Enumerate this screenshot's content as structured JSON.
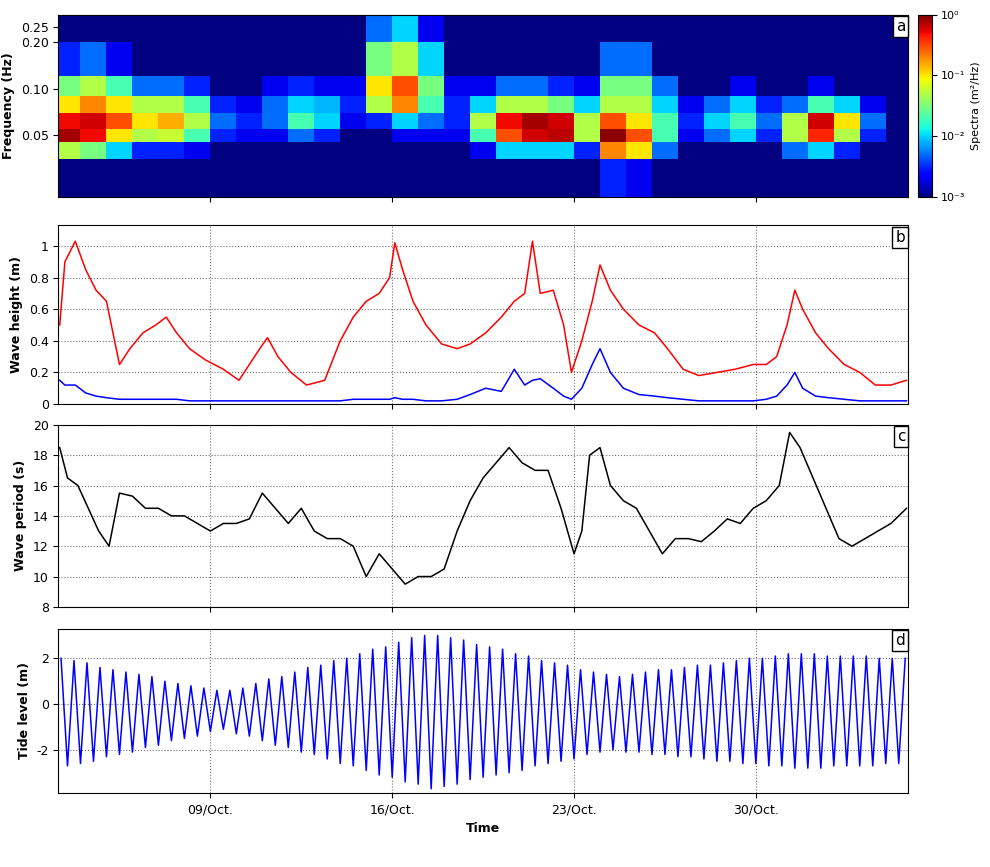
{
  "chart_data": [
    {
      "type": "heatmap",
      "panel": "a",
      "ylabel": "Frequency (Hz)",
      "log": "y",
      "tick_labels": "y",
      "xlim": [
        3.15,
        35.85
      ],
      "xticks": [
        {
          "value": 9,
          "label": "09/Oct."
        },
        {
          "value": 16,
          "label": "16/Oct."
        },
        {
          "value": 23,
          "label": "23/Oct."
        },
        {
          "value": 30,
          "label": "30/Oct."
        }
      ],
      "ylim": [
        0.02,
        0.3
      ],
      "yticks": [
        0.05,
        {
          "value": 0.1,
          "label": "0.10"
        },
        {
          "value": 0.2,
          "label": "0.20"
        },
        0.25
      ],
      "x_bins": [
        3,
        4,
        5,
        6,
        7,
        8,
        9,
        10,
        11,
        12,
        13,
        14,
        15,
        16,
        17,
        18,
        19,
        20,
        21,
        22,
        23,
        24,
        25,
        26,
        27,
        28,
        29,
        30,
        31,
        32,
        33,
        34,
        35,
        36
      ],
      "y_bins": [
        0.02,
        0.035,
        0.045,
        0.055,
        0.07,
        0.09,
        0.12,
        0.2,
        0.3
      ],
      "cells": [
        [
          0.001,
          0.001,
          0.001,
          0.001,
          0.001,
          0.001,
          0.001,
          0.001,
          0.001,
          0.001,
          0.001,
          0.001,
          0.001,
          0.001,
          0.001,
          0.001,
          0.001,
          0.001,
          0.001,
          0.001,
          0.001,
          0.003,
          0.002,
          0.001,
          0.001,
          0.001,
          0.001,
          0.001,
          0.001,
          0.001,
          0.001,
          0.001,
          0.001
        ],
        [
          0.05,
          0.03,
          0.01,
          0.003,
          0.003,
          0.002,
          0.001,
          0.001,
          0.001,
          0.001,
          0.001,
          0.001,
          0.001,
          0.001,
          0.001,
          0.001,
          0.002,
          0.01,
          0.01,
          0.01,
          0.003,
          0.2,
          0.1,
          0.005,
          0.001,
          0.001,
          0.001,
          0.001,
          0.005,
          0.01,
          0.003,
          0.001,
          0.001
        ],
        [
          0.8,
          0.5,
          0.1,
          0.05,
          0.06,
          0.02,
          0.003,
          0.002,
          0.002,
          0.005,
          0.003,
          0.001,
          0.001,
          0.002,
          0.002,
          0.002,
          0.02,
          0.3,
          0.6,
          0.7,
          0.05,
          0.9,
          0.3,
          0.02,
          0.002,
          0.005,
          0.01,
          0.003,
          0.05,
          0.4,
          0.05,
          0.003,
          0.001
        ],
        [
          0.5,
          0.6,
          0.3,
          0.1,
          0.15,
          0.05,
          0.005,
          0.003,
          0.005,
          0.02,
          0.01,
          0.002,
          0.003,
          0.01,
          0.005,
          0.003,
          0.05,
          0.5,
          0.8,
          0.6,
          0.05,
          0.3,
          0.1,
          0.02,
          0.003,
          0.01,
          0.02,
          0.005,
          0.05,
          0.6,
          0.1,
          0.005,
          0.001
        ],
        [
          0.1,
          0.2,
          0.1,
          0.05,
          0.05,
          0.02,
          0.003,
          0.002,
          0.005,
          0.01,
          0.008,
          0.003,
          0.05,
          0.2,
          0.02,
          0.003,
          0.01,
          0.05,
          0.05,
          0.03,
          0.01,
          0.05,
          0.05,
          0.01,
          0.002,
          0.005,
          0.01,
          0.003,
          0.005,
          0.02,
          0.01,
          0.002,
          0.001
        ],
        [
          0.03,
          0.05,
          0.02,
          0.005,
          0.005,
          0.003,
          0.001,
          0.001,
          0.002,
          0.003,
          0.002,
          0.002,
          0.1,
          0.3,
          0.03,
          0.002,
          0.002,
          0.005,
          0.005,
          0.003,
          0.002,
          0.03,
          0.03,
          0.005,
          0.001,
          0.001,
          0.002,
          0.001,
          0.001,
          0.002,
          0.001,
          0.001,
          0.001
        ],
        [
          0.003,
          0.005,
          0.002,
          0.001,
          0.001,
          0.001,
          0.001,
          0.001,
          0.001,
          0.001,
          0.001,
          0.001,
          0.03,
          0.05,
          0.01,
          0.001,
          0.001,
          0.001,
          0.001,
          0.001,
          0.001,
          0.005,
          0.005,
          0.001,
          0.001,
          0.001,
          0.001,
          0.001,
          0.001,
          0.001,
          0.001,
          0.001,
          0.001
        ],
        [
          0.001,
          0.001,
          0.001,
          0.001,
          0.001,
          0.001,
          0.001,
          0.001,
          0.001,
          0.001,
          0.001,
          0.001,
          0.005,
          0.01,
          0.002,
          0.001,
          0.001,
          0.001,
          0.001,
          0.001,
          0.001,
          0.001,
          0.001,
          0.001,
          0.001,
          0.001,
          0.001,
          0.001,
          0.001,
          0.001,
          0.001,
          0.001,
          0.001
        ]
      ],
      "colorbar_label": "Spectra (m²/Hz)",
      "colorbar_range": [
        0.001,
        1
      ],
      "colorbar_ticks": [
        {
          "value": 0.001,
          "label": "10⁻³"
        },
        {
          "value": 0.01,
          "label": "10⁻²"
        },
        {
          "value": 0.1,
          "label": "10⁻¹"
        },
        {
          "value": 1,
          "label": "10⁰"
        }
      ]
    },
    {
      "type": "line",
      "panel": "b",
      "ylabel": "Wave height (m)",
      "grid": true,
      "tick_labels": "y",
      "xlim": [
        3.15,
        35.85
      ],
      "xticks": [
        {
          "value": 9,
          "label": "09/Oct."
        },
        {
          "value": 16,
          "label": "16/Oct."
        },
        {
          "value": 23,
          "label": "23/Oct."
        },
        {
          "value": 30,
          "label": "30/Oct."
        }
      ],
      "ylim": [
        0,
        1.13
      ],
      "yticks": [
        0,
        0.2,
        0.4,
        0.6,
        0.8,
        1
      ],
      "x": [
        3.2,
        3.4,
        3.8,
        4.2,
        4.6,
        5.0,
        5.5,
        5.9,
        6.4,
        6.9,
        7.3,
        7.7,
        8.2,
        8.8,
        9.5,
        10.1,
        10.5,
        10.9,
        11.2,
        11.6,
        12.1,
        12.7,
        13.4,
        14.0,
        14.5,
        15.0,
        15.5,
        15.9,
        16.1,
        16.4,
        16.8,
        17.3,
        17.9,
        18.5,
        19.0,
        19.6,
        20.2,
        20.7,
        21.1,
        21.4,
        21.7,
        22.2,
        22.6,
        22.9,
        23.3,
        23.7,
        24.0,
        24.4,
        24.9,
        25.5,
        26.1,
        26.6,
        27.2,
        27.8,
        28.5,
        29.2,
        29.9,
        30.4,
        30.8,
        31.2,
        31.5,
        31.8,
        32.3,
        32.8,
        33.4,
        34.0,
        34.6,
        35.2,
        35.8
      ],
      "series": [
        {
          "color": "#ff0000",
          "values": [
            0.5,
            0.9,
            1.03,
            0.85,
            0.72,
            0.65,
            0.25,
            0.35,
            0.45,
            0.5,
            0.55,
            0.45,
            0.35,
            0.28,
            0.22,
            0.15,
            0.25,
            0.35,
            0.42,
            0.3,
            0.2,
            0.12,
            0.15,
            0.4,
            0.55,
            0.65,
            0.7,
            0.8,
            1.02,
            0.85,
            0.65,
            0.5,
            0.38,
            0.35,
            0.38,
            0.45,
            0.55,
            0.65,
            0.7,
            1.03,
            0.7,
            0.72,
            0.5,
            0.2,
            0.4,
            0.65,
            0.88,
            0.72,
            0.6,
            0.5,
            0.45,
            0.35,
            0.22,
            0.18,
            0.2,
            0.22,
            0.25,
            0.25,
            0.3,
            0.5,
            0.72,
            0.6,
            0.45,
            0.35,
            0.25,
            0.2,
            0.12,
            0.12,
            0.15
          ]
        },
        {
          "color": "#0000ff",
          "values": [
            0.15,
            0.12,
            0.12,
            0.07,
            0.05,
            0.04,
            0.03,
            0.03,
            0.03,
            0.03,
            0.03,
            0.03,
            0.02,
            0.02,
            0.02,
            0.02,
            0.02,
            0.02,
            0.02,
            0.02,
            0.02,
            0.02,
            0.02,
            0.02,
            0.03,
            0.03,
            0.03,
            0.03,
            0.04,
            0.03,
            0.03,
            0.02,
            0.02,
            0.03,
            0.06,
            0.1,
            0.08,
            0.22,
            0.12,
            0.15,
            0.16,
            0.1,
            0.05,
            0.03,
            0.1,
            0.25,
            0.35,
            0.2,
            0.1,
            0.06,
            0.05,
            0.04,
            0.03,
            0.02,
            0.02,
            0.02,
            0.02,
            0.03,
            0.05,
            0.12,
            0.2,
            0.1,
            0.05,
            0.04,
            0.03,
            0.02,
            0.02,
            0.02,
            0.02
          ]
        }
      ]
    },
    {
      "type": "line",
      "panel": "c",
      "ylabel": "Wave period (s)",
      "grid": true,
      "tick_labels": "y",
      "xlim": [
        3.15,
        35.85
      ],
      "xticks": [
        {
          "value": 9,
          "label": "09/Oct."
        },
        {
          "value": 16,
          "label": "16/Oct."
        },
        {
          "value": 23,
          "label": "23/Oct."
        },
        {
          "value": 30,
          "label": "30/Oct."
        }
      ],
      "ylim": [
        8,
        20
      ],
      "yticks": [
        8,
        10,
        12,
        14,
        16,
        18,
        20
      ],
      "x": [
        3.2,
        3.5,
        3.9,
        4.3,
        4.7,
        5.1,
        5.5,
        6.0,
        6.5,
        7.0,
        7.5,
        8.0,
        8.5,
        9.0,
        9.5,
        10.0,
        10.5,
        11.0,
        11.5,
        12.0,
        12.5,
        13.0,
        13.5,
        14.0,
        14.5,
        15.0,
        15.5,
        16.0,
        16.5,
        17.0,
        17.5,
        18.0,
        18.5,
        19.0,
        19.5,
        20.0,
        20.5,
        21.0,
        21.5,
        22.0,
        22.5,
        23.0,
        23.3,
        23.6,
        24.0,
        24.4,
        24.9,
        25.4,
        25.9,
        26.4,
        26.9,
        27.4,
        27.9,
        28.4,
        28.9,
        29.4,
        29.9,
        30.4,
        30.9,
        31.3,
        31.7,
        32.2,
        32.7,
        33.2,
        33.7,
        34.2,
        34.7,
        35.2,
        35.8
      ],
      "series": [
        {
          "color": "#000000",
          "values": [
            18.5,
            16.5,
            16,
            14.5,
            13,
            12,
            15.5,
            15.3,
            14.5,
            14.5,
            14,
            14,
            13.5,
            13,
            13.5,
            13.5,
            13.8,
            15.5,
            14.5,
            13.5,
            14.5,
            13,
            12.5,
            12.5,
            12,
            10,
            11.5,
            10.5,
            9.5,
            10,
            10,
            10.5,
            13,
            15,
            16.5,
            17.5,
            18.5,
            17.5,
            17,
            17,
            14.5,
            11.5,
            13,
            18,
            18.5,
            16,
            15,
            14.5,
            13,
            11.5,
            12.5,
            12.5,
            12.3,
            13,
            13.8,
            13.5,
            14.5,
            15,
            16,
            19.5,
            18.5,
            16.5,
            14.5,
            12.5,
            12,
            12.5,
            13,
            13.5,
            14.5
          ]
        }
      ]
    },
    {
      "type": "line",
      "panel": "d",
      "ylabel": "Tide level (m)",
      "xlabel": "Time",
      "grid": true,
      "xlim": [
        3.15,
        35.85
      ],
      "xticks": [
        {
          "value": 9,
          "label": "09/Oct."
        },
        {
          "value": 16,
          "label": "16/Oct."
        },
        {
          "value": 23,
          "label": "23/Oct."
        },
        {
          "value": 30,
          "label": "30/Oct."
        }
      ],
      "ylim": [
        -3.9,
        3.3
      ],
      "yticks": [
        -2,
        0,
        2
      ],
      "x": [
        3.25,
        3.5,
        3.75,
        4,
        4.25,
        4.5,
        4.75,
        5,
        5.25,
        5.5,
        5.75,
        6,
        6.25,
        6.5,
        6.75,
        7,
        7.25,
        7.5,
        7.75,
        8,
        8.25,
        8.5,
        8.75,
        9,
        9.25,
        9.5,
        9.75,
        10,
        10.25,
        10.5,
        10.75,
        11,
        11.25,
        11.5,
        11.75,
        12,
        12.25,
        12.5,
        12.75,
        13,
        13.25,
        13.5,
        13.75,
        14,
        14.25,
        14.5,
        14.75,
        15,
        15.25,
        15.5,
        15.75,
        16,
        16.25,
        16.5,
        16.75,
        17,
        17.25,
        17.5,
        17.75,
        18,
        18.25,
        18.5,
        18.75,
        19,
        19.25,
        19.5,
        19.75,
        20,
        20.25,
        20.5,
        20.75,
        21,
        21.25,
        21.5,
        21.75,
        22,
        22.25,
        22.5,
        22.75,
        23,
        23.25,
        23.5,
        23.75,
        24,
        24.25,
        24.5,
        24.75,
        25,
        25.25,
        25.5,
        25.75,
        26,
        26.25,
        26.5,
        26.75,
        27,
        27.25,
        27.5,
        27.75,
        28,
        28.25,
        28.5,
        28.75,
        29,
        29.25,
        29.5,
        29.75,
        30,
        30.25,
        30.5,
        30.75,
        31,
        31.25,
        31.5,
        31.75,
        32,
        32.25,
        32.5,
        32.75,
        33,
        33.25,
        33.5,
        33.75,
        34,
        34.25,
        34.5,
        34.75,
        35,
        35.25,
        35.5,
        35.75
      ],
      "series": [
        {
          "color": "#0000ff",
          "values": [
            2.0,
            -2.7,
            1.9,
            -2.6,
            1.8,
            -2.5,
            1.6,
            -2.3,
            1.5,
            -2.2,
            1.4,
            -2.1,
            1.3,
            -1.9,
            1.2,
            -1.8,
            1.0,
            -1.6,
            0.9,
            -1.5,
            0.8,
            -1.4,
            0.7,
            -1.2,
            0.6,
            -1.1,
            0.6,
            -1.3,
            0.7,
            -1.4,
            0.9,
            -1.6,
            1.1,
            -1.8,
            1.2,
            -1.9,
            1.4,
            -2.1,
            1.6,
            -2.2,
            1.7,
            -2.4,
            1.9,
            -2.6,
            2.0,
            -2.7,
            2.2,
            -2.9,
            2.4,
            -3.1,
            2.5,
            -3.2,
            2.7,
            -3.4,
            2.9,
            -3.5,
            3.0,
            -3.7,
            3.0,
            -3.6,
            2.9,
            -3.5,
            2.8,
            -3.3,
            2.6,
            -3.2,
            2.5,
            -3.1,
            2.4,
            -3.0,
            2.2,
            -2.9,
            2.1,
            -2.7,
            1.9,
            -2.6,
            1.8,
            -2.5,
            1.7,
            -2.4,
            1.5,
            -2.2,
            1.4,
            -2.1,
            1.3,
            -2.0,
            1.2,
            -2.1,
            1.3,
            -2.1,
            1.4,
            -2.2,
            1.5,
            -2.2,
            1.5,
            -2.3,
            1.6,
            -2.3,
            1.7,
            -2.4,
            1.7,
            -2.5,
            1.8,
            -2.5,
            1.9,
            -2.6,
            2.0,
            -2.6,
            2.0,
            -2.7,
            2.1,
            -2.7,
            2.2,
            -2.8,
            2.2,
            -2.8,
            2.2,
            -2.8,
            2.1,
            -2.7,
            2.1,
            -2.7,
            2.1,
            -2.7,
            2.1,
            -2.7,
            2.0,
            -2.6,
            2.0,
            -2.6,
            2.0
          ]
        }
      ]
    }
  ]
}
